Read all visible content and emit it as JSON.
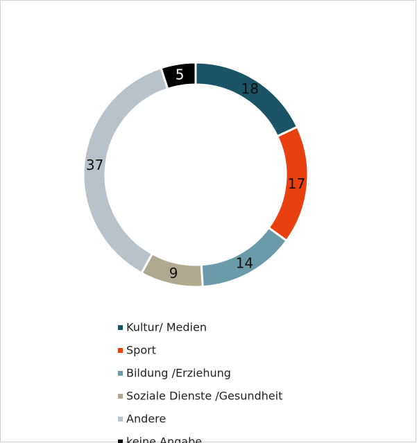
{
  "chart_data": {
    "type": "pie",
    "donut": true,
    "categories": [
      "Kultur/ Medien",
      "Sport",
      "Bildung /Erziehung",
      "Soziale Dienste /Gesundheit",
      "Andere",
      "keine Angabe"
    ],
    "values": [
      18,
      17,
      14,
      9,
      37,
      5
    ],
    "colors": [
      "#1a5466",
      "#e8410f",
      "#6b9bab",
      "#aea98f",
      "#b9c2c8",
      "#000000"
    ],
    "label_colors": [
      "#111111",
      "#111111",
      "#111111",
      "#111111",
      "#111111",
      "#ffffff"
    ],
    "legend": "bottom"
  }
}
